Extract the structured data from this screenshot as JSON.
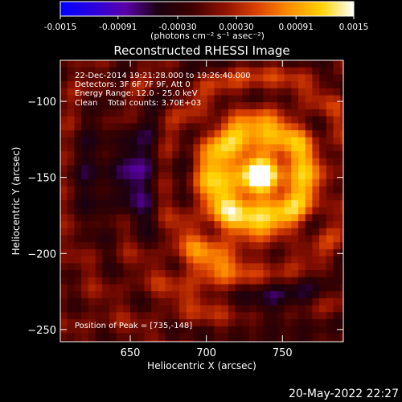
{
  "colorbar": {
    "tick_labels": [
      "-0.0015",
      "-0.00091",
      "-0.00030",
      "0.00030",
      "0.00091",
      "0.0015"
    ],
    "tick_values": [
      -0.0015,
      -0.00091,
      -0.0003,
      0.0003,
      0.00091,
      0.0015
    ],
    "range": [
      -0.0015,
      0.0015
    ],
    "units": "(photons cm⁻² s⁻¹ asec⁻²)",
    "palette": [
      "#0000ff",
      "#2a00dd",
      "#5a00a8",
      "#1a0010",
      "#3a0000",
      "#8a1000",
      "#d84000",
      "#ff8c00",
      "#ffd200",
      "#ffffff"
    ]
  },
  "chart_data": {
    "type": "heatmap",
    "title": "Reconstructed RHESSI Image",
    "xlabel": "Heliocentric X (arcsec)",
    "ylabel": "Heliocentric Y (arcsec)",
    "xlim": [
      604,
      790
    ],
    "ylim": [
      -258,
      -73
    ],
    "x_ticks": [
      650,
      700,
      750
    ],
    "x_tick_labels": [
      "650",
      "700",
      "750"
    ],
    "y_ticks": [
      -250,
      -200,
      -150,
      -100
    ],
    "y_tick_labels": [
      "−250",
      "−200",
      "−150",
      "−100"
    ],
    "peak": {
      "x": 735,
      "y": -148
    },
    "sources": [
      {
        "x": 732,
        "y": -150,
        "sigma": 28,
        "amp": 0.00145
      },
      {
        "x": 702,
        "y": -210,
        "sigma": 18,
        "amp": 0.00055
      },
      {
        "x": 650,
        "y": -148,
        "sigma": 24,
        "amp": -0.0006
      },
      {
        "x": 745,
        "y": -235,
        "sigma": 22,
        "amp": -0.00035
      }
    ],
    "info_lines": [
      "22-Dec-2014 19:21:28.000 to 19:26:40.000",
      "Detectors: 3F 6F 7F 9F, Att 0",
      "Energy Range: 12.0 - 25.0 keV",
      "Clean    Total counts: 3.70E+03"
    ],
    "peak_label": "Position of Peak = [735,-148]"
  },
  "footer": {
    "timestamp": "20-May-2022 22:27"
  }
}
